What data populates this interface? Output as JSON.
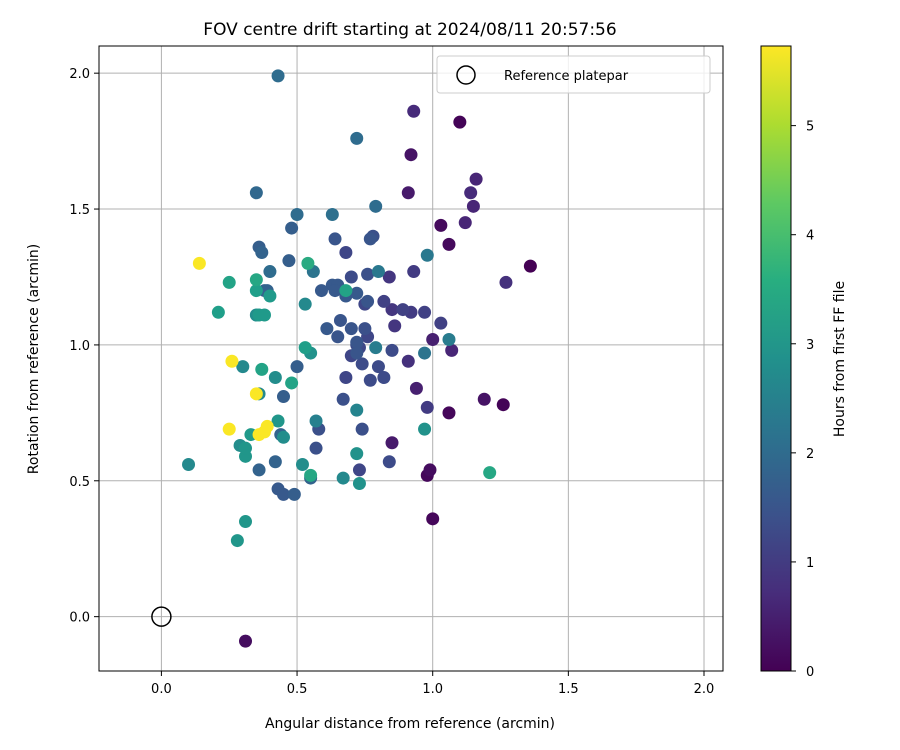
{
  "chart_data": {
    "type": "scatter",
    "title": "FOV centre drift starting at 2024/08/11 20:57:56",
    "xlabel": "Angular distance from reference (arcmin)",
    "ylabel": "Rotation from reference (arcmin)",
    "xlim": [
      -0.23,
      2.07
    ],
    "ylim": [
      -0.2,
      2.1
    ],
    "xticks": [
      "0.0",
      "0.5",
      "1.0",
      "1.5",
      "2.0"
    ],
    "yticks": [
      "0.0",
      "0.5",
      "1.0",
      "1.5",
      "2.0"
    ],
    "grid": true,
    "legend": {
      "location": "top-right",
      "entries": [
        "Reference platepar"
      ]
    },
    "colorbar": {
      "label": "Hours from first FF file",
      "colormap": "viridis",
      "range": [
        0,
        5.73
      ],
      "ticks": [
        "0",
        "1",
        "2",
        "3",
        "4",
        "5"
      ]
    },
    "reference_point": {
      "name": "Reference platepar",
      "x": 0.0,
      "y": 0.0
    },
    "points": [
      [
        1.36,
        1.29,
        0.0
      ],
      [
        1.26,
        0.78,
        0.05
      ],
      [
        1.1,
        1.82,
        0.05
      ],
      [
        0.98,
        0.52,
        0.1
      ],
      [
        1.06,
        0.75,
        0.1
      ],
      [
        1.0,
        0.36,
        0.1
      ],
      [
        1.03,
        1.44,
        0.15
      ],
      [
        1.06,
        1.37,
        0.15
      ],
      [
        0.31,
        -0.09,
        0.2
      ],
      [
        0.99,
        0.54,
        0.2
      ],
      [
        1.19,
        0.8,
        0.3
      ],
      [
        0.92,
        1.7,
        0.3
      ],
      [
        0.85,
        0.64,
        0.4
      ],
      [
        0.91,
        1.56,
        0.4
      ],
      [
        0.94,
        0.84,
        0.5
      ],
      [
        1.0,
        1.02,
        0.5
      ],
      [
        1.12,
        1.45,
        0.6
      ],
      [
        1.15,
        1.51,
        0.6
      ],
      [
        1.16,
        1.61,
        0.6
      ],
      [
        1.07,
        0.98,
        0.6
      ],
      [
        1.14,
        1.56,
        0.7
      ],
      [
        0.93,
        1.86,
        0.7
      ],
      [
        1.27,
        1.23,
        0.8
      ],
      [
        0.91,
        0.94,
        0.8
      ],
      [
        0.84,
        1.25,
        0.9
      ],
      [
        0.85,
        1.13,
        0.9
      ],
      [
        0.86,
        1.07,
        0.9
      ],
      [
        0.93,
        1.27,
        1.0
      ],
      [
        0.92,
        1.12,
        1.0
      ],
      [
        0.98,
        0.77,
        1.0
      ],
      [
        0.97,
        1.12,
        1.1
      ],
      [
        1.03,
        1.08,
        1.1
      ],
      [
        0.89,
        1.13,
        1.1
      ],
      [
        0.82,
        1.16,
        1.1
      ],
      [
        0.73,
        0.54,
        1.2
      ],
      [
        0.75,
        1.15,
        1.2
      ],
      [
        0.68,
        1.34,
        1.2
      ],
      [
        0.68,
        0.88,
        1.2
      ],
      [
        0.7,
        0.96,
        1.2
      ],
      [
        0.73,
        0.99,
        1.2
      ],
      [
        0.76,
        1.03,
        1.2
      ],
      [
        0.8,
        0.92,
        1.3
      ],
      [
        0.82,
        0.88,
        1.3
      ],
      [
        0.77,
        0.87,
        1.3
      ],
      [
        0.72,
        1.0,
        1.3
      ],
      [
        0.74,
        0.93,
        1.3
      ],
      [
        0.85,
        0.98,
        1.3
      ],
      [
        0.84,
        0.57,
        1.3
      ],
      [
        0.7,
        1.25,
        1.3
      ],
      [
        0.74,
        0.69,
        1.4
      ],
      [
        0.58,
        0.69,
        1.4
      ],
      [
        0.57,
        0.62,
        1.4
      ],
      [
        0.67,
        0.8,
        1.4
      ],
      [
        0.76,
        1.26,
        1.4
      ],
      [
        0.78,
        1.4,
        1.4
      ],
      [
        0.75,
        1.06,
        1.4
      ],
      [
        0.7,
        1.06,
        1.5
      ],
      [
        0.72,
        1.01,
        1.5
      ],
      [
        0.77,
        1.39,
        1.5
      ],
      [
        0.72,
        0.97,
        1.5
      ],
      [
        0.76,
        1.16,
        1.5
      ],
      [
        0.66,
        1.09,
        1.5
      ],
      [
        0.65,
        1.03,
        1.5
      ],
      [
        0.64,
        1.39,
        1.5
      ],
      [
        0.63,
        1.22,
        1.6
      ],
      [
        0.61,
        1.06,
        1.6
      ],
      [
        0.65,
        1.22,
        1.6
      ],
      [
        0.68,
        1.18,
        1.6
      ],
      [
        0.72,
        1.19,
        1.6
      ],
      [
        0.64,
        1.2,
        1.6
      ],
      [
        0.59,
        1.2,
        1.6
      ],
      [
        0.43,
        0.47,
        1.6
      ],
      [
        0.45,
        0.45,
        1.6
      ],
      [
        0.49,
        0.45,
        1.7
      ],
      [
        0.5,
        0.92,
        1.7
      ],
      [
        0.47,
        1.31,
        1.7
      ],
      [
        0.45,
        0.81,
        1.7
      ],
      [
        0.48,
        1.43,
        1.7
      ],
      [
        0.36,
        1.36,
        1.7
      ],
      [
        0.37,
        1.34,
        1.8
      ],
      [
        0.38,
        1.2,
        1.8
      ],
      [
        0.36,
        0.54,
        1.8
      ],
      [
        0.44,
        0.67,
        1.8
      ],
      [
        0.42,
        0.57,
        1.8
      ],
      [
        0.39,
        1.2,
        1.8
      ],
      [
        0.55,
        0.51,
        1.8
      ],
      [
        0.35,
        1.56,
        1.9
      ],
      [
        0.43,
        1.99,
        2.0
      ],
      [
        0.72,
        1.76,
        2.0
      ],
      [
        0.79,
        1.51,
        2.0
      ],
      [
        0.5,
        1.48,
        2.0
      ],
      [
        0.4,
        1.27,
        2.0
      ],
      [
        0.63,
        1.48,
        2.1
      ],
      [
        0.56,
        1.27,
        2.2
      ],
      [
        0.97,
        0.97,
        2.2
      ],
      [
        0.98,
        1.33,
        2.3
      ],
      [
        0.8,
        1.27,
        2.3
      ],
      [
        0.79,
        0.99,
        2.4
      ],
      [
        1.06,
        1.02,
        2.4
      ],
      [
        0.57,
        0.72,
        2.5
      ],
      [
        0.72,
        0.76,
        2.6
      ],
      [
        0.53,
        1.15,
        2.7
      ],
      [
        0.67,
        0.51,
        2.7
      ],
      [
        0.3,
        0.92,
        2.7
      ],
      [
        0.1,
        0.56,
        2.7
      ],
      [
        0.36,
        0.82,
        2.7
      ],
      [
        0.29,
        0.63,
        2.8
      ],
      [
        0.35,
        1.11,
        2.8
      ],
      [
        0.52,
        0.56,
        2.8
      ],
      [
        0.42,
        0.88,
        2.8
      ],
      [
        0.45,
        0.66,
        2.8
      ],
      [
        0.72,
        0.6,
        2.9
      ],
      [
        0.73,
        0.49,
        2.9
      ],
      [
        0.97,
        0.69,
        2.9
      ],
      [
        0.55,
        0.97,
        2.9
      ],
      [
        0.43,
        0.72,
        3.0
      ],
      [
        0.31,
        0.59,
        3.0
      ],
      [
        0.31,
        0.62,
        3.0
      ],
      [
        0.28,
        0.28,
        3.0
      ],
      [
        0.31,
        0.35,
        3.0
      ],
      [
        0.33,
        0.67,
        3.1
      ],
      [
        0.36,
        1.11,
        3.1
      ],
      [
        0.38,
        1.11,
        3.1
      ],
      [
        0.4,
        1.18,
        3.1
      ],
      [
        0.21,
        1.12,
        3.2
      ],
      [
        0.35,
        1.2,
        3.2
      ],
      [
        0.53,
        0.99,
        3.2
      ],
      [
        0.48,
        0.86,
        3.3
      ],
      [
        0.37,
        0.91,
        3.3
      ],
      [
        0.68,
        1.2,
        3.3
      ],
      [
        0.25,
        1.23,
        3.3
      ],
      [
        0.35,
        1.24,
        3.4
      ],
      [
        0.55,
        0.52,
        3.4
      ],
      [
        1.21,
        0.53,
        3.4
      ],
      [
        0.54,
        1.3,
        3.5
      ],
      [
        0.14,
        1.3,
        5.7
      ],
      [
        0.26,
        0.94,
        5.7
      ],
      [
        0.25,
        0.69,
        5.7
      ],
      [
        0.35,
        0.82,
        5.7
      ],
      [
        0.36,
        0.67,
        5.7
      ],
      [
        0.38,
        0.68,
        5.7
      ],
      [
        0.39,
        0.7,
        5.7
      ]
    ]
  }
}
